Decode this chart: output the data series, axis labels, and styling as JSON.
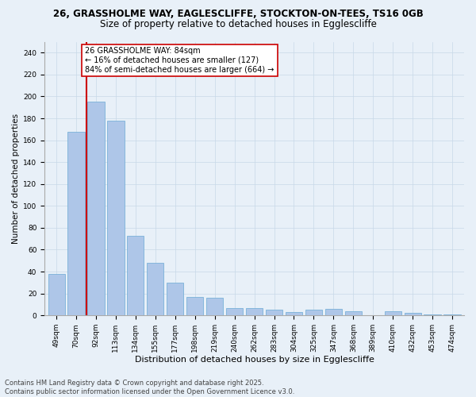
{
  "title_line1": "26, GRASSHOLME WAY, EAGLESCLIFFE, STOCKTON-ON-TEES, TS16 0GB",
  "title_line2": "Size of property relative to detached houses in Egglescliffe",
  "xlabel": "Distribution of detached houses by size in Egglescliffe",
  "ylabel": "Number of detached properties",
  "categories": [
    "49sqm",
    "70sqm",
    "92sqm",
    "113sqm",
    "134sqm",
    "155sqm",
    "177sqm",
    "198sqm",
    "219sqm",
    "240sqm",
    "262sqm",
    "283sqm",
    "304sqm",
    "325sqm",
    "347sqm",
    "368sqm",
    "389sqm",
    "410sqm",
    "432sqm",
    "453sqm",
    "474sqm"
  ],
  "values": [
    38,
    168,
    195,
    178,
    73,
    48,
    30,
    17,
    16,
    7,
    7,
    5,
    3,
    5,
    6,
    4,
    0,
    4,
    2,
    1,
    1
  ],
  "bar_color": "#aec6e8",
  "bar_edge_color": "#6aaad4",
  "vline_x": 1.5,
  "vline_color": "#cc0000",
  "annotation_text": "26 GRASSHOLME WAY: 84sqm\n← 16% of detached houses are smaller (127)\n84% of semi-detached houses are larger (664) →",
  "annotation_box_color": "#ffffff",
  "annotation_box_edge": "#cc0000",
  "ylim": [
    0,
    250
  ],
  "yticks": [
    0,
    20,
    40,
    60,
    80,
    100,
    120,
    140,
    160,
    180,
    200,
    220,
    240
  ],
  "grid_color": "#c8d8e8",
  "background_color": "#e8f0f8",
  "footer_line1": "Contains HM Land Registry data © Crown copyright and database right 2025.",
  "footer_line2": "Contains public sector information licensed under the Open Government Licence v3.0.",
  "title_fontsize": 8.5,
  "subtitle_fontsize": 8.5,
  "xlabel_fontsize": 8,
  "ylabel_fontsize": 7.5,
  "tick_fontsize": 6.5,
  "annotation_fontsize": 7,
  "footer_fontsize": 6
}
